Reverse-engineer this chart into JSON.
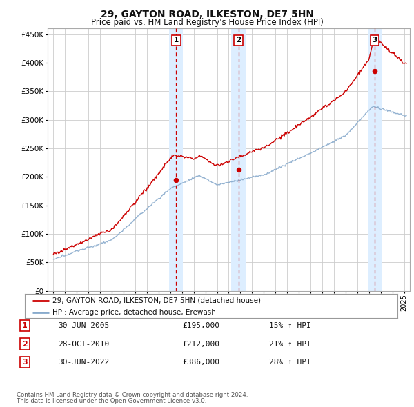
{
  "title": "29, GAYTON ROAD, ILKESTON, DE7 5HN",
  "subtitle": "Price paid vs. HM Land Registry's House Price Index (HPI)",
  "legend_line1": "29, GAYTON ROAD, ILKESTON, DE7 5HN (detached house)",
  "legend_line2": "HPI: Average price, detached house, Erewash",
  "footnote1": "Contains HM Land Registry data © Crown copyright and database right 2024.",
  "footnote2": "This data is licensed under the Open Government Licence v3.0.",
  "sales": [
    {
      "num": 1,
      "date_str": "30-JUN-2005",
      "date_dec": 2005.5,
      "price": 195000,
      "pct": "15% ↑ HPI"
    },
    {
      "num": 2,
      "date_str": "28-OCT-2010",
      "date_dec": 2010.83,
      "price": 212000,
      "pct": "21% ↑ HPI"
    },
    {
      "num": 3,
      "date_str": "30-JUN-2022",
      "date_dec": 2022.5,
      "price": 386000,
      "pct": "28% ↑ HPI"
    }
  ],
  "hpi_color": "#88aacc",
  "price_color": "#cc0000",
  "sale_marker_color": "#cc0000",
  "vline_color": "#cc0000",
  "vshade_color": "#ddeeff",
  "grid_color": "#cccccc",
  "background_color": "#ffffff",
  "ylim": [
    0,
    460000
  ],
  "yticks": [
    0,
    50000,
    100000,
    150000,
    200000,
    250000,
    300000,
    350000,
    400000,
    450000
  ],
  "xlim_start": 1994.5,
  "xlim_end": 2025.5
}
